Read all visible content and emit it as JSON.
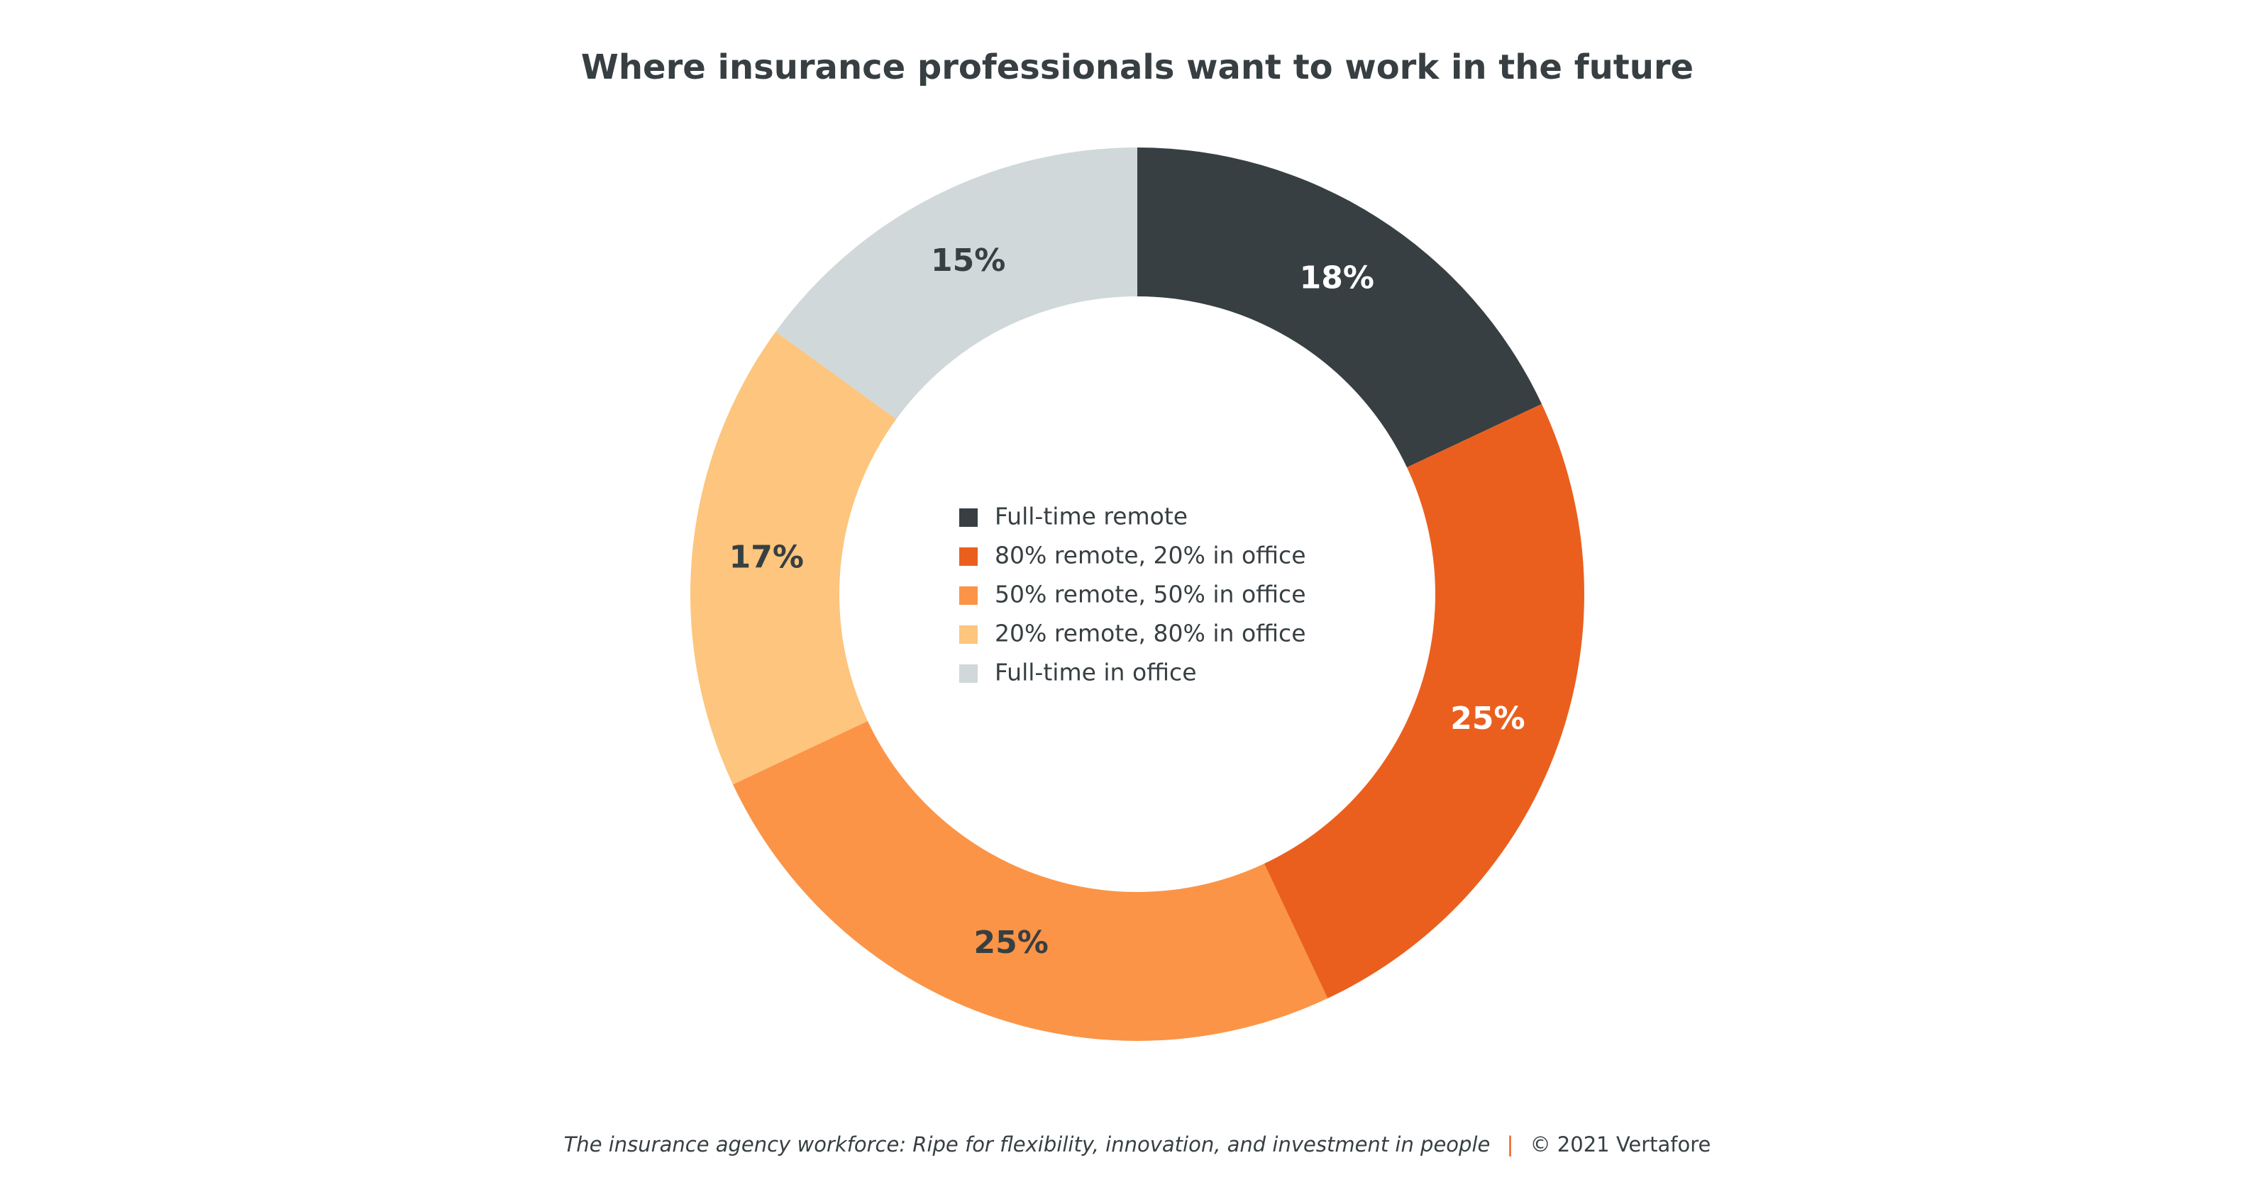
{
  "chart_data": {
    "type": "donut",
    "title": "Where insurance professionals want to work in the future",
    "categories": [
      "Full-time remote",
      "80% remote, 20% in office",
      "50% remote, 50% in office",
      "20% remote, 80% in office",
      "Full-time in office"
    ],
    "values": [
      18,
      25,
      25,
      17,
      15
    ],
    "value_labels": [
      "18%",
      "25%",
      "25%",
      "17%",
      "15%"
    ],
    "colors": [
      "#373f42",
      "#eb5f1e",
      "#fb9447",
      "#fdc57d",
      "#d0d8da"
    ],
    "source": "The insurance agency workforce: Ripe for flexibility, innovation, and investment in people",
    "separator": "|",
    "copyright": "© 2021 Vertafore"
  }
}
